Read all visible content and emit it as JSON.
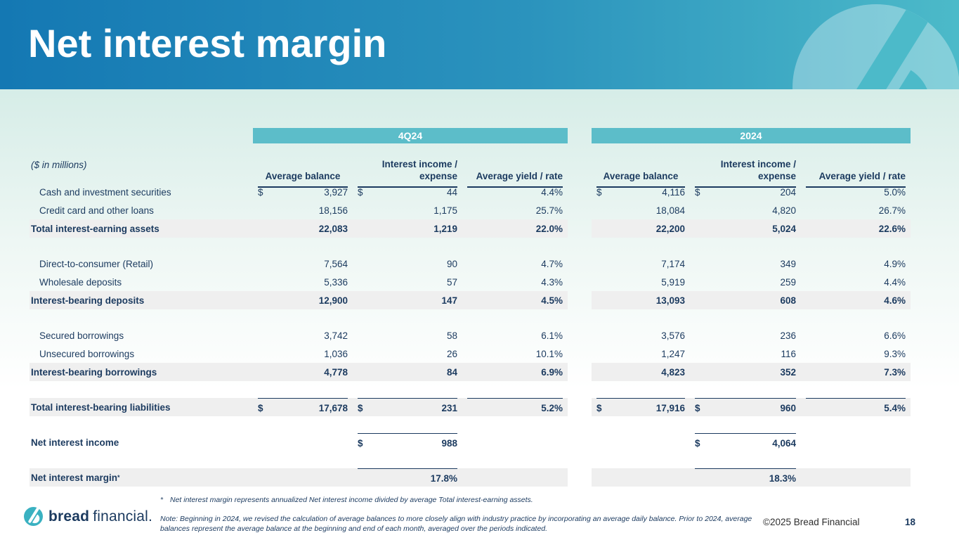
{
  "slide": {
    "title": "Net interest margin",
    "units_label": "($ in millions)",
    "copyright": "©2025 Bread Financial",
    "page_number": "18"
  },
  "logo": {
    "brand_bold": "bread",
    "brand_light": "financial."
  },
  "colors": {
    "banner_blue": "#1478b3",
    "banner_teal": "#4cbac9",
    "group_bar_teal": "#5cbdc9",
    "navy_text": "#1b3a5f",
    "total_row_gray": "#efefef"
  },
  "table": {
    "groups": [
      {
        "label": "4Q24"
      },
      {
        "label": "2024"
      }
    ],
    "column_headers": [
      "Average balance",
      "Interest income / expense",
      "Average yield / rate"
    ],
    "rows": [
      {
        "style": "detail",
        "label": "Cash and investment securities",
        "cells": [
          [
            "$",
            "3,927"
          ],
          [
            "$",
            "44"
          ],
          [
            "",
            "4.4%"
          ],
          [
            "$",
            "4,116"
          ],
          [
            "$",
            "204"
          ],
          [
            "",
            "5.0%"
          ]
        ]
      },
      {
        "style": "detail",
        "label": "Credit card and other loans",
        "line_bottom": true,
        "cells": [
          [
            "",
            "18,156"
          ],
          [
            "",
            "1,175"
          ],
          [
            "",
            "25.7%"
          ],
          [
            "",
            "18,084"
          ],
          [
            "",
            "4,820"
          ],
          [
            "",
            "26.7%"
          ]
        ]
      },
      {
        "style": "total",
        "label": "Total interest-earning assets",
        "cells": [
          [
            "",
            "22,083"
          ],
          [
            "",
            "1,219"
          ],
          [
            "",
            "22.0%"
          ],
          [
            "",
            "22,200"
          ],
          [
            "",
            "5,024"
          ],
          [
            "",
            "22.6%"
          ]
        ]
      },
      {
        "style": "spacer"
      },
      {
        "style": "detail",
        "label": "Direct-to-consumer (Retail)",
        "cells": [
          [
            "",
            "7,564"
          ],
          [
            "",
            "90"
          ],
          [
            "",
            "4.7%"
          ],
          [
            "",
            "7,174"
          ],
          [
            "",
            "349"
          ],
          [
            "",
            "4.9%"
          ]
        ]
      },
      {
        "style": "detail",
        "label": "Wholesale deposits",
        "line_bottom": true,
        "cells": [
          [
            "",
            "5,336"
          ],
          [
            "",
            "57"
          ],
          [
            "",
            "4.3%"
          ],
          [
            "",
            "5,919"
          ],
          [
            "",
            "259"
          ],
          [
            "",
            "4.4%"
          ]
        ]
      },
      {
        "style": "total",
        "label": "Interest-bearing deposits",
        "cells": [
          [
            "",
            "12,900"
          ],
          [
            "",
            "147"
          ],
          [
            "",
            "4.5%"
          ],
          [
            "",
            "13,093"
          ],
          [
            "",
            "608"
          ],
          [
            "",
            "4.6%"
          ]
        ]
      },
      {
        "style": "spacer"
      },
      {
        "style": "detail",
        "label": "Secured borrowings",
        "cells": [
          [
            "",
            "3,742"
          ],
          [
            "",
            "58"
          ],
          [
            "",
            "6.1%"
          ],
          [
            "",
            "3,576"
          ],
          [
            "",
            "236"
          ],
          [
            "",
            "6.6%"
          ]
        ]
      },
      {
        "style": "detail",
        "label": "Unsecured borrowings",
        "line_bottom": true,
        "cells": [
          [
            "",
            "1,036"
          ],
          [
            "",
            "26"
          ],
          [
            "",
            "10.1%"
          ],
          [
            "",
            "1,247"
          ],
          [
            "",
            "116"
          ],
          [
            "",
            "9.3%"
          ]
        ]
      },
      {
        "style": "total",
        "label": "Interest-bearing borrowings",
        "cells": [
          [
            "",
            "4,778"
          ],
          [
            "",
            "84"
          ],
          [
            "",
            "6.9%"
          ],
          [
            "",
            "4,823"
          ],
          [
            "",
            "352"
          ],
          [
            "",
            "7.3%"
          ]
        ]
      },
      {
        "style": "spacer"
      },
      {
        "style": "total",
        "label": "Total interest-bearing liabilities",
        "line_top": true,
        "cells": [
          [
            "$",
            "17,678"
          ],
          [
            "$",
            "231"
          ],
          [
            "",
            "5.2%"
          ],
          [
            "$",
            "17,916"
          ],
          [
            "$",
            "960"
          ],
          [
            "",
            "5.4%"
          ]
        ]
      },
      {
        "style": "spacer"
      },
      {
        "style": "bold",
        "label": "Net interest income",
        "line_top": true,
        "cells": [
          null,
          [
            "$",
            "988"
          ],
          null,
          null,
          [
            "$",
            "4,064"
          ],
          null
        ]
      },
      {
        "style": "spacer"
      },
      {
        "style": "total",
        "label": "Net interest margin",
        "label_sup": "*",
        "line_top": true,
        "cells": [
          null,
          [
            "",
            "17.8%"
          ],
          null,
          null,
          [
            "",
            "18.3%"
          ],
          null
        ]
      }
    ]
  },
  "footnotes": {
    "asterisk_marker": "*",
    "asterisk_text": "Net interest margin represents annualized Net interest income divided by average Total interest-earning assets.",
    "note_text": "Note: Beginning in 2024, we revised the calculation of average balances to more closely align with industry practice by incorporating an average daily balance. Prior to 2024, average balances represent the average balance at the beginning and end of each month, averaged over the periods indicated."
  }
}
